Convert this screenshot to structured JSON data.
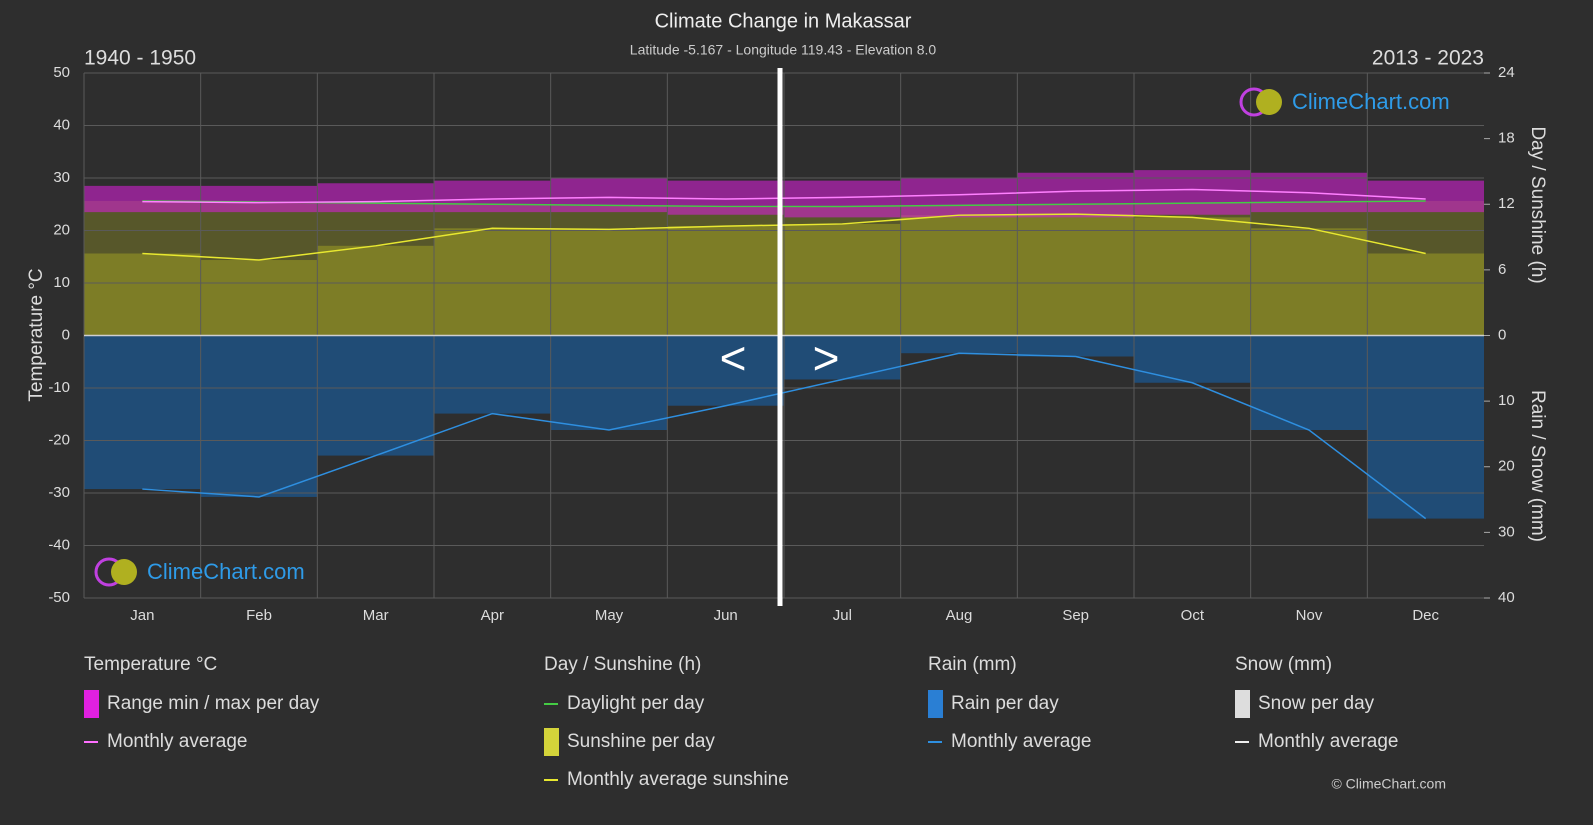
{
  "chart_data": {
    "type": "climate",
    "title": "Climate Change in Makassar",
    "subtitle": "Latitude -5.167 - Longitude 119.43 - Elevation 8.0",
    "period_left": "1940 - 1950",
    "period_right": "2013 - 2023",
    "nav": [
      "<",
      ">"
    ],
    "logo_text": "ClimeChart.com",
    "copyright": "© ClimeChart.com",
    "ylabel": "Temperature °C",
    "y2label": "Day / Sunshine (h)",
    "y3label": "Rain / Snow (mm)",
    "categories": [
      "Jan",
      "Feb",
      "Mar",
      "Apr",
      "May",
      "Jun",
      "Jul",
      "Aug",
      "Sep",
      "Oct",
      "Nov",
      "Dec"
    ],
    "ylim": [
      -50,
      50
    ],
    "yticks": [
      -50,
      -40,
      -30,
      -20,
      -10,
      0,
      10,
      20,
      30,
      40,
      50
    ],
    "y2lim": [
      0,
      24
    ],
    "y2ticks": [
      0,
      6,
      12,
      18,
      24
    ],
    "y3lim": [
      0,
      40
    ],
    "y3ticks": [
      0,
      10,
      20,
      30,
      40
    ],
    "grid": true,
    "temp_range": {
      "color": "#d020d0",
      "low": [
        23.5,
        23.5,
        23.5,
        23.5,
        23.5,
        23,
        22.5,
        22.5,
        22.5,
        23,
        23.5,
        23.5
      ],
      "high": [
        28.5,
        28.5,
        29,
        29.5,
        30,
        29.5,
        29.5,
        30,
        31,
        31.5,
        31,
        29.5
      ]
    },
    "temp_avg": {
      "color": "#ff80ff",
      "values": [
        25.5,
        25.3,
        25.5,
        26.0,
        26.3,
        26.0,
        26.3,
        26.8,
        27.5,
        27.8,
        27.2,
        26.0
      ]
    },
    "daylight": {
      "color": "#44cc44",
      "axis": "y2",
      "values": [
        12.3,
        12.2,
        12.1,
        12.0,
        11.9,
        11.8,
        11.8,
        11.9,
        12.0,
        12.1,
        12.2,
        12.3
      ]
    },
    "sunshine_avg": {
      "color": "#e8e830",
      "fill": "#8a8a26",
      "axis": "y2",
      "values": [
        7.5,
        6.9,
        8.2,
        9.8,
        9.7,
        10.0,
        10.2,
        11.0,
        11.1,
        10.8,
        9.8,
        7.5
      ]
    },
    "rain_avg": {
      "color": "#2e8fe0",
      "fill": "#1d5488",
      "axis": "y3",
      "values": [
        23.4,
        24.6,
        18.3,
        11.9,
        14.4,
        10.7,
        6.7,
        2.7,
        3.2,
        7.2,
        14.4,
        27.9
      ]
    },
    "legend": [
      {
        "title": "Temperature °C",
        "items": [
          {
            "label": "Range min / max per day",
            "color": "#e020e0",
            "style": "box"
          },
          {
            "label": "Monthly average",
            "color": "#ff70ff",
            "style": "line"
          }
        ]
      },
      {
        "title": "Day / Sunshine (h)",
        "items": [
          {
            "label": "Daylight per day",
            "color": "#44cc44",
            "style": "line"
          },
          {
            "label": "Sunshine per day",
            "color": "#d4d43a",
            "style": "box"
          },
          {
            "label": "Monthly average sunshine",
            "color": "#e8e830",
            "style": "line"
          }
        ]
      },
      {
        "title": "Rain (mm)",
        "items": [
          {
            "label": "Rain per day",
            "color": "#2a7fd4",
            "style": "box"
          },
          {
            "label": "Monthly average",
            "color": "#2e8fe0",
            "style": "line"
          }
        ]
      },
      {
        "title": "Snow (mm)",
        "items": [
          {
            "label": "Snow per day",
            "color": "#dddddd",
            "style": "box"
          },
          {
            "label": "Monthly average",
            "color": "#eeeeee",
            "style": "line"
          }
        ]
      }
    ]
  }
}
